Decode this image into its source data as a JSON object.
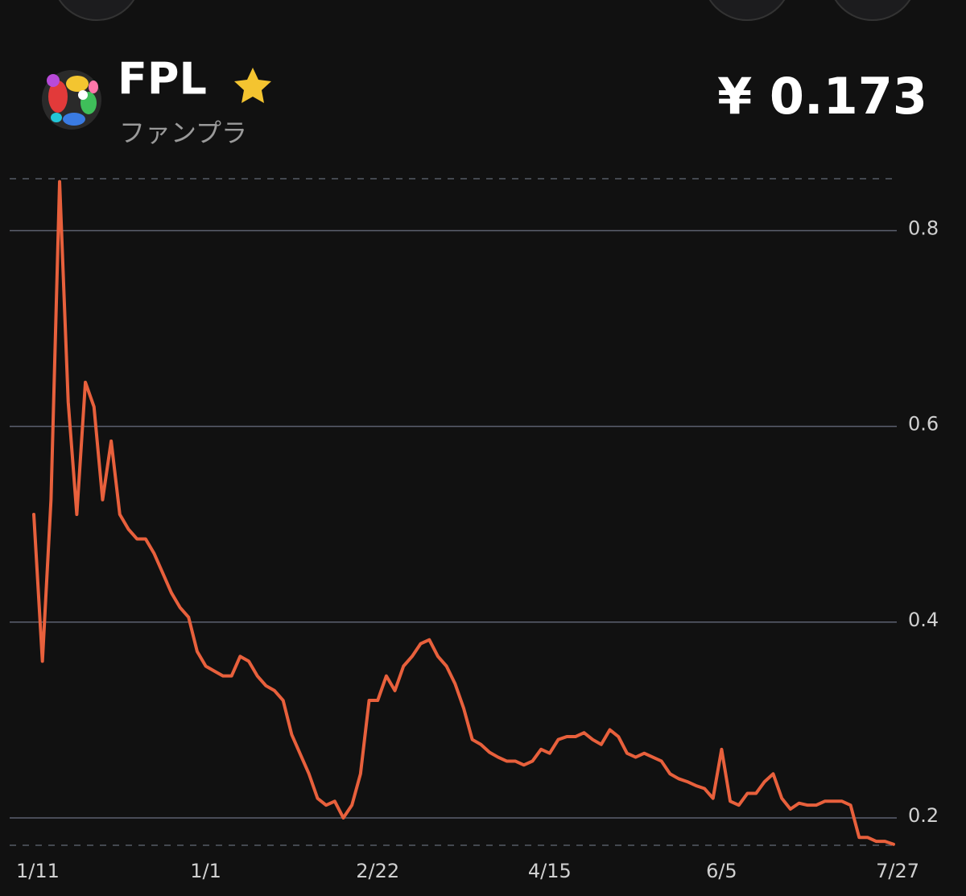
{
  "header": {
    "symbol": "FPL",
    "name": "ファンプラ",
    "price": "¥ 0.173"
  },
  "chart_data": {
    "type": "line",
    "categories": [
      "1/11",
      null,
      null,
      null,
      null,
      null,
      null,
      null,
      null,
      null,
      null,
      null,
      null,
      null,
      null,
      null,
      null,
      null,
      null,
      null,
      "1/1",
      null,
      null,
      null,
      null,
      null,
      null,
      null,
      null,
      null,
      null,
      null,
      null,
      null,
      null,
      null,
      null,
      null,
      null,
      null,
      "2/22",
      null,
      null,
      null,
      null,
      null,
      null,
      null,
      null,
      null,
      null,
      null,
      null,
      null,
      null,
      null,
      null,
      null,
      null,
      null,
      "4/15",
      null,
      null,
      null,
      null,
      null,
      null,
      null,
      null,
      null,
      null,
      null,
      null,
      null,
      null,
      null,
      null,
      null,
      null,
      null,
      "6/5",
      null,
      null,
      null,
      null,
      null,
      null,
      null,
      null,
      null,
      null,
      null,
      null,
      null,
      null,
      null,
      null,
      null,
      null,
      null,
      "7/27"
    ],
    "series": [
      {
        "color": "#e8603c",
        "values": [
          0.51,
          0.36,
          0.525,
          0.85,
          0.625,
          0.51,
          0.645,
          0.62,
          0.525,
          0.585,
          0.51,
          0.495,
          0.485,
          0.485,
          0.47,
          0.45,
          0.43,
          0.415,
          0.405,
          0.37,
          0.355,
          0.35,
          0.345,
          0.345,
          0.365,
          0.36,
          0.345,
          0.335,
          0.33,
          0.32,
          0.285,
          0.265,
          0.245,
          0.22,
          0.213,
          0.217,
          0.2,
          0.213,
          0.245,
          0.32,
          0.32,
          0.345,
          0.33,
          0.355,
          0.365,
          0.378,
          0.382,
          0.365,
          0.355,
          0.337,
          0.312,
          0.28,
          0.275,
          0.267,
          0.262,
          0.258,
          0.258,
          0.254,
          0.258,
          0.27,
          0.266,
          0.28,
          0.283,
          0.283,
          0.287,
          0.28,
          0.275,
          0.29,
          0.283,
          0.266,
          0.262,
          0.266,
          0.262,
          0.258,
          0.245,
          0.24,
          0.237,
          0.233,
          0.23,
          0.22,
          0.27,
          0.217,
          0.213,
          0.225,
          0.225,
          0.237,
          0.245,
          0.22,
          0.209,
          0.215,
          0.213,
          0.213,
          0.217,
          0.217,
          0.217,
          0.213,
          0.18,
          0.18,
          0.176,
          0.176,
          0.173
        ]
      }
    ],
    "ylim": [
      0.172,
      0.853
    ],
    "yticks": [
      0.2,
      0.4,
      0.6,
      0.8
    ],
    "grid": true
  }
}
